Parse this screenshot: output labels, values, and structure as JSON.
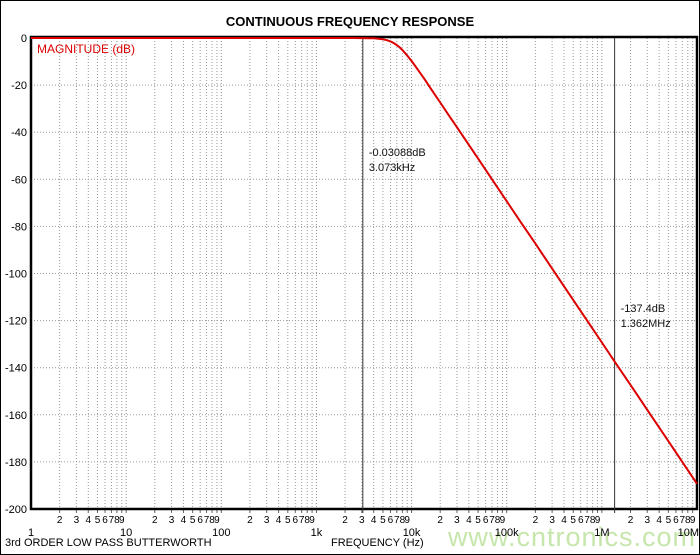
{
  "title": "CONTINUOUS FREQUENCY RESPONSE",
  "footer": {
    "left_text": "3rd ORDER LOW PASS BUTTERWORTH",
    "watermark": "www.cntronics.com"
  },
  "colors": {
    "curve": "#dd0000",
    "grid": "#999999",
    "cursor": "#333333",
    "frame": "#000000",
    "magnitude_label": "#dd0000",
    "watermark": "#c6e6ac",
    "text": "#000000"
  },
  "chart_data": {
    "type": "line",
    "title": "CONTINUOUS FREQUENCY RESPONSE",
    "xlabel": "FREQUENCY (Hz)",
    "ylabel": "MAGNITUDE (dB)",
    "x_scale": "log",
    "xlim_hz": [
      1,
      10000000
    ],
    "ylim_db": [
      -200,
      0
    ],
    "grid": true,
    "y_tick_step_db": 20,
    "y_tick_labels": [
      "0",
      "-20",
      "-40",
      "-60",
      "-80",
      "-100",
      "-120",
      "-140",
      "-160",
      "-180",
      "-200"
    ],
    "x_decade_labels": [
      "1",
      "10",
      "100",
      "1k",
      "10k",
      "100k",
      "1M",
      "10M"
    ],
    "x_minor_digits": [
      2,
      3,
      4,
      5,
      6,
      7,
      8,
      9
    ],
    "series": [
      {
        "name": "magnitude",
        "description": "3rd order Butterworth low-pass, fc = 7 kHz, -60 dB/decade rolloff",
        "points_hz_db": [
          [
            1,
            0
          ],
          [
            10,
            0
          ],
          [
            100,
            0
          ],
          [
            500,
            -0.0001
          ],
          [
            1000,
            -4e-05
          ],
          [
            1500,
            -0.0004
          ],
          [
            2000,
            -0.0024
          ],
          [
            2500,
            -0.009
          ],
          [
            3000,
            -0.027
          ],
          [
            3073,
            -0.03088
          ],
          [
            3500,
            -0.067
          ],
          [
            4000,
            -0.148
          ],
          [
            4500,
            -0.296
          ],
          [
            5000,
            -0.54
          ],
          [
            5500,
            -0.916
          ],
          [
            6000,
            -1.45
          ],
          [
            6500,
            -2.15
          ],
          [
            7003,
            -3.01
          ],
          [
            7500,
            -3.99
          ],
          [
            8000,
            -5.08
          ],
          [
            9000,
            -7.41
          ],
          [
            10000,
            -9.77
          ],
          [
            12000,
            -14.2
          ],
          [
            14000,
            -18.1
          ],
          [
            16000,
            -21.6
          ],
          [
            20000,
            -27.4
          ],
          [
            25000,
            -33.2
          ],
          [
            30000,
            -37.9
          ],
          [
            40000,
            -45.4
          ],
          [
            50000,
            -51.2
          ],
          [
            70000,
            -60.0
          ],
          [
            100000,
            -69.3
          ],
          [
            140000,
            -78.1
          ],
          [
            200000,
            -87.3
          ],
          [
            300000,
            -97.9
          ],
          [
            500000,
            -111.2
          ],
          [
            700000,
            -120.0
          ],
          [
            1000000,
            -129.3
          ],
          [
            1362000,
            -137.4
          ],
          [
            2000000,
            -147.3
          ],
          [
            3000000,
            -157.9
          ],
          [
            5000000,
            -171.2
          ],
          [
            7000000,
            -180.0
          ],
          [
            10000000,
            -189.3
          ]
        ]
      }
    ],
    "cursors": [
      {
        "freq_hz": 3073,
        "label_db": "-0.03088dB",
        "label_freq": "3.073kHz"
      },
      {
        "freq_hz": 1362000,
        "label_db": "-137.4dB",
        "label_freq": "1.362MHz"
      }
    ]
  }
}
